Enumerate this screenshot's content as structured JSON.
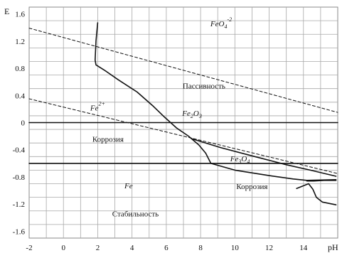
{
  "chart_data": {
    "type": "line",
    "title": "",
    "xlabel": "pH",
    "ylabel": "E",
    "xlim": [
      -2,
      16
    ],
    "ylim": [
      -1.7,
      1.7
    ],
    "grid": true,
    "x_ticks": [
      {
        "value": -2,
        "label": "-2"
      },
      {
        "value": 0,
        "label": "0"
      },
      {
        "value": 2,
        "label": "2"
      },
      {
        "value": 4,
        "label": "4"
      },
      {
        "value": 6,
        "label": "6"
      },
      {
        "value": 8,
        "label": "8"
      },
      {
        "value": 10,
        "label": "10"
      },
      {
        "value": 12,
        "label": "12"
      },
      {
        "value": 14,
        "label": "14"
      }
    ],
    "y_ticks": [
      {
        "value": 1.6,
        "label": "1.6"
      },
      {
        "value": 1.2,
        "label": "1.2"
      },
      {
        "value": 0.8,
        "label": "0.8"
      },
      {
        "value": 0.4,
        "label": "0.4"
      },
      {
        "value": 0,
        "label": "0"
      },
      {
        "value": -0.4,
        "label": "-0.4"
      },
      {
        "value": -0.8,
        "label": "-0.8"
      },
      {
        "value": -1.2,
        "label": "-1.2"
      },
      {
        "value": -1.6,
        "label": "-1.6"
      }
    ],
    "species": [
      {
        "id": "feo4",
        "base": "FeO",
        "sub": "4",
        "sup": "-2",
        "x": 9.2,
        "y": 1.42
      },
      {
        "id": "fe2plus",
        "base": "Fe",
        "sub": "",
        "sup": "2+",
        "x": 2.0,
        "y": 0.18
      },
      {
        "id": "fe2o3",
        "base": "Fe",
        "sub": "2",
        "sup": "",
        "tail": "O",
        "tail_sub": "3",
        "x": 7.5,
        "y": 0.1
      },
      {
        "id": "fe3o4",
        "base": "Fe",
        "sub": "3",
        "sup": "",
        "tail": "O",
        "tail_sub": "4",
        "x": 10.3,
        "y": -0.57
      },
      {
        "id": "fe",
        "base": "Fe",
        "sub": "",
        "sup": "",
        "x": 3.8,
        "y": -0.97
      }
    ],
    "regions": [
      {
        "id": "passivity",
        "label": "Пассивность",
        "x": 8.2,
        "y": 0.5
      },
      {
        "id": "corrosion-left",
        "label": "Коррозия",
        "x": 2.6,
        "y": -0.28
      },
      {
        "id": "corrosion-right",
        "label": "Коррозия",
        "x": 11.0,
        "y": -0.98
      },
      {
        "id": "stability",
        "label": "Стабильность",
        "x": 4.2,
        "y": -1.38
      }
    ],
    "series": [
      {
        "id": "o2-line",
        "style": "dashed",
        "points": [
          [
            -2,
            1.39
          ],
          [
            16,
            0.15
          ]
        ]
      },
      {
        "id": "h2-line",
        "style": "dashed",
        "points": [
          [
            -2,
            0.35
          ],
          [
            16,
            -0.75
          ]
        ]
      },
      {
        "id": "e-zero",
        "style": "solid",
        "points": [
          [
            -2,
            0.0
          ],
          [
            16,
            0.0
          ]
        ]
      },
      {
        "id": "e-minus-0.6",
        "style": "solid",
        "points": [
          [
            -2,
            -0.6
          ],
          [
            16,
            -0.6
          ]
        ]
      },
      {
        "id": "fe2-feo4",
        "style": "solid",
        "points": [
          [
            2.0,
            1.47
          ],
          [
            1.9,
            1.2
          ],
          [
            1.85,
            0.92
          ],
          [
            1.9,
            0.85
          ],
          [
            2.4,
            0.77
          ],
          [
            3.2,
            0.63
          ],
          [
            4.3,
            0.45
          ],
          [
            5.2,
            0.25
          ],
          [
            5.9,
            0.08
          ],
          [
            6.6,
            -0.08
          ],
          [
            7.3,
            -0.2
          ],
          [
            7.9,
            -0.33
          ],
          [
            8.3,
            -0.45
          ],
          [
            8.6,
            -0.6
          ]
        ]
      },
      {
        "id": "fe2o3-fe3o4",
        "style": "solid",
        "points": [
          [
            7.5,
            -0.24
          ],
          [
            9.2,
            -0.37
          ],
          [
            11.0,
            -0.49
          ],
          [
            13.0,
            -0.62
          ],
          [
            14.4,
            -0.7
          ],
          [
            15.9,
            -0.79
          ]
        ]
      },
      {
        "id": "fe3o4-fe",
        "style": "solid",
        "points": [
          [
            8.6,
            -0.6
          ],
          [
            10.0,
            -0.7
          ],
          [
            12.0,
            -0.78
          ],
          [
            13.4,
            -0.83
          ],
          [
            14.2,
            -0.85
          ],
          [
            15.9,
            -0.84
          ]
        ]
      },
      {
        "id": "corrosion-boundary",
        "style": "solid",
        "points": [
          [
            13.6,
            -0.97
          ],
          [
            14.0,
            -0.93
          ],
          [
            14.3,
            -0.9
          ],
          [
            14.55,
            -0.98
          ],
          [
            14.75,
            -1.1
          ],
          [
            15.1,
            -1.17
          ],
          [
            15.9,
            -1.21
          ]
        ]
      },
      {
        "id": "corrosion-hook",
        "style": "solid",
        "points": [
          [
            14.2,
            -0.86
          ],
          [
            14.6,
            -0.86
          ],
          [
            15.2,
            -0.85
          ],
          [
            15.9,
            -0.85
          ]
        ]
      }
    ]
  }
}
